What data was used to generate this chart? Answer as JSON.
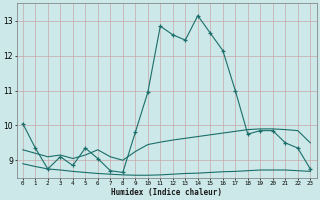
{
  "xlabel": "Humidex (Indice chaleur)",
  "bg_color": "#cce8e8",
  "grid_color": "#c8a8a8",
  "line_color": "#1a6e6a",
  "xlim": [
    -0.5,
    23.5
  ],
  "ylim": [
    8.5,
    13.5
  ],
  "xticks": [
    0,
    1,
    2,
    3,
    4,
    5,
    6,
    7,
    8,
    9,
    10,
    11,
    12,
    13,
    14,
    15,
    16,
    17,
    18,
    19,
    20,
    21,
    22,
    23
  ],
  "yticks": [
    9,
    10,
    11,
    12,
    13
  ],
  "line1_x": [
    0,
    1,
    2,
    3,
    4,
    5,
    6,
    7,
    8,
    9,
    10,
    11,
    12,
    13,
    14,
    15,
    16,
    17,
    18,
    19,
    20,
    21,
    22,
    23
  ],
  "line1_y": [
    10.05,
    9.35,
    8.75,
    9.1,
    8.85,
    9.35,
    9.05,
    8.7,
    8.65,
    9.8,
    10.95,
    12.85,
    12.6,
    12.45,
    13.15,
    12.65,
    12.15,
    11.0,
    9.75,
    9.85,
    9.85,
    9.5,
    9.35,
    8.75
  ],
  "line2_x": [
    0,
    1,
    2,
    3,
    4,
    5,
    6,
    7,
    8,
    9,
    10,
    11,
    12,
    13,
    14,
    15,
    16,
    17,
    18,
    19,
    20,
    21,
    22,
    23
  ],
  "line2_y": [
    9.3,
    9.2,
    9.1,
    9.15,
    9.05,
    9.15,
    9.3,
    9.1,
    9.0,
    9.25,
    9.45,
    9.52,
    9.58,
    9.63,
    9.68,
    9.73,
    9.78,
    9.83,
    9.88,
    9.9,
    9.9,
    9.88,
    9.85,
    9.5
  ],
  "line3_x": [
    0,
    1,
    2,
    3,
    4,
    5,
    6,
    7,
    8,
    9,
    10,
    11,
    12,
    13,
    14,
    15,
    16,
    17,
    18,
    19,
    20,
    21,
    22,
    23
  ],
  "line3_y": [
    8.9,
    8.82,
    8.75,
    8.72,
    8.68,
    8.65,
    8.62,
    8.6,
    8.58,
    8.57,
    8.57,
    8.58,
    8.6,
    8.62,
    8.63,
    8.65,
    8.67,
    8.68,
    8.7,
    8.72,
    8.72,
    8.72,
    8.7,
    8.68
  ]
}
